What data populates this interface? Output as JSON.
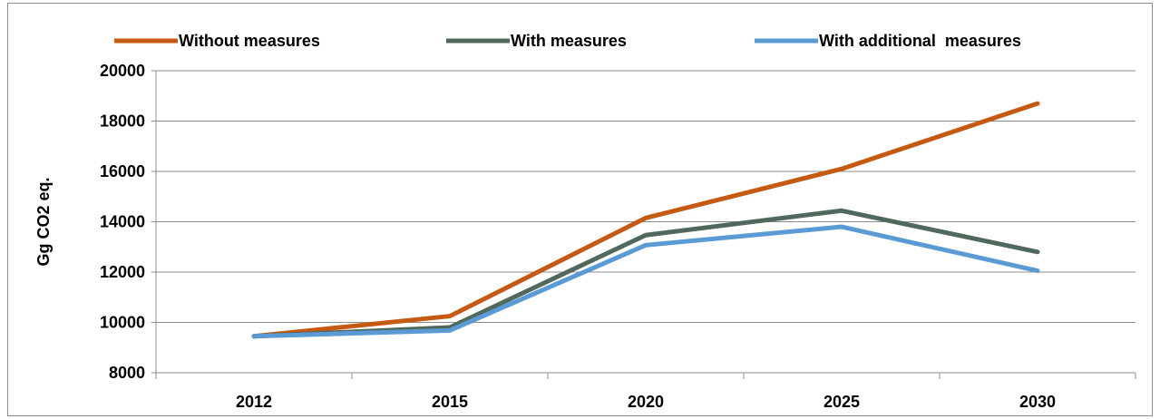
{
  "chart_data": {
    "type": "line",
    "title": "",
    "xlabel": "",
    "ylabel": "Gg CO2 eq.",
    "categories": [
      "2012",
      "2015",
      "2020",
      "2025",
      "2030"
    ],
    "ylim": [
      8000,
      20000
    ],
    "yticks": [
      8000,
      10000,
      12000,
      14000,
      16000,
      18000,
      20000
    ],
    "grid": true,
    "legend_position": "top",
    "series": [
      {
        "name": "Without measures",
        "color": "#c55a11",
        "values": [
          9450,
          10250,
          14150,
          16100,
          18700
        ]
      },
      {
        "name": "With measures",
        "color": "#50695c",
        "values": [
          9450,
          9800,
          13470,
          14440,
          12800
        ]
      },
      {
        "name": "With additional  measures",
        "color": "#5b9bd5",
        "values": [
          9450,
          9680,
          13070,
          13800,
          12050
        ]
      }
    ]
  }
}
